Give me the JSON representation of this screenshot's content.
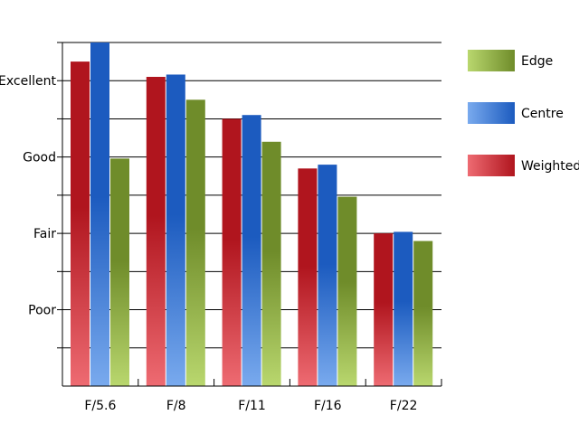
{
  "chart_data": {
    "type": "bar",
    "title": "",
    "xlabel": "",
    "ylabel": "",
    "categories": [
      "F/5.6",
      "F/8",
      "F/11",
      "F/16",
      "F/22"
    ],
    "y_tick_labels": [
      "Poor",
      "Fair",
      "Good",
      "Excellent"
    ],
    "y_tick_values": [
      1,
      2,
      3,
      4
    ],
    "ylim": [
      0,
      4.5
    ],
    "grid": true,
    "legend_position": "right",
    "series": [
      {
        "name": "Weighted",
        "values": [
          4.25,
          4.05,
          3.5,
          2.85,
          2.0
        ],
        "color_dark": "#b0151e",
        "color_light": "#ee6b72"
      },
      {
        "name": "Centre",
        "values": [
          4.5,
          4.08,
          3.55,
          2.9,
          2.02
        ],
        "color_dark": "#1c5bbf",
        "color_light": "#79aaee"
      },
      {
        "name": "Edge",
        "values": [
          2.98,
          3.75,
          3.2,
          2.48,
          1.9
        ],
        "color_dark": "#6f8c2a",
        "color_light": "#b9d76e"
      }
    ],
    "legend_order": [
      "Edge",
      "Centre",
      "Weighted"
    ]
  }
}
